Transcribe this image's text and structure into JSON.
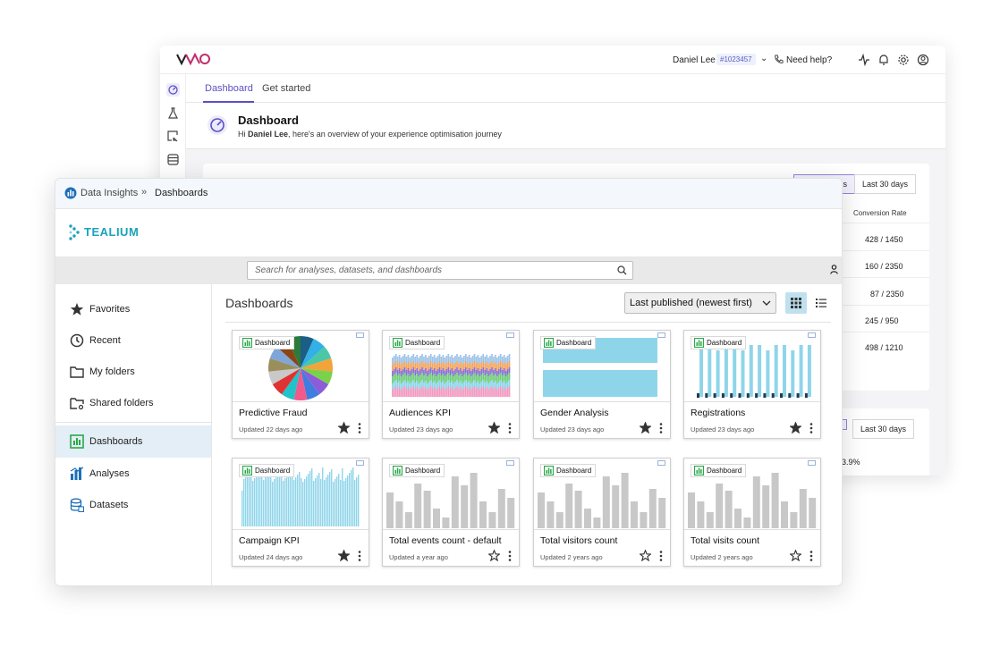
{
  "vwo": {
    "user_name": "Daniel Lee",
    "account_id": "#1023457",
    "help_label": "Need help?",
    "tabs": [
      "Dashboard",
      "Get started"
    ],
    "title": "Dashboard",
    "subtitle_hi": "Hi ",
    "subtitle_name": "Daniel Lee",
    "subtitle_rest": ", here's an overview of your experience optimisation journey",
    "range_left_partial": "s",
    "range_label": "Last 30 days",
    "conversion_header": "Conversion Rate",
    "conversions": [
      "428 / 1450",
      "160 / 2350",
      "87 / 2350",
      "245 / 950",
      "498 / 1210"
    ],
    "range_label_2": "Last 30 days",
    "percent_partial": "3.9%",
    "colors": {
      "accent": "#5b4fc4",
      "logo_pink": "#c22d6e"
    }
  },
  "tealium": {
    "breadcrumb": {
      "root": "Data Insights",
      "separator": "»",
      "current": "Dashboards"
    },
    "brand": "TEALIUM",
    "search_placeholder": "Search for analyses, datasets, and dashboards",
    "nav": [
      {
        "label": "Favorites",
        "icon": "star-icon"
      },
      {
        "label": "Recent",
        "icon": "clock-icon"
      },
      {
        "label": "My folders",
        "icon": "folder-icon"
      },
      {
        "label": "Shared folders",
        "icon": "shared-folder-icon"
      },
      {
        "label": "Dashboards",
        "icon": "dashboard-icon",
        "active": true
      },
      {
        "label": "Analyses",
        "icon": "analyses-icon"
      },
      {
        "label": "Datasets",
        "icon": "datasets-icon"
      }
    ],
    "main_title": "Dashboards",
    "sort_label": "Last published (newest first)",
    "badge_label": "Dashboard",
    "cards": [
      {
        "title": "Predictive Fraud",
        "updated": "Updated 22 days ago",
        "favorite": true,
        "thumb": "pie"
      },
      {
        "title": "Audiences KPI",
        "updated": "Updated 23 days ago",
        "favorite": true,
        "thumb": "stacked"
      },
      {
        "title": "Gender Analysis",
        "updated": "Updated 23 days ago",
        "favorite": true,
        "thumb": "hbar"
      },
      {
        "title": "Registrations",
        "updated": "Updated 23 days ago",
        "favorite": true,
        "thumb": "paired"
      },
      {
        "title": "Campaign KPI",
        "updated": "Updated 24 days ago",
        "favorite": true,
        "thumb": "dense"
      },
      {
        "title": "Total events count - default",
        "updated": "Updated a year ago",
        "favorite": false,
        "thumb": "gray"
      },
      {
        "title": "Total visitors count",
        "updated": "Updated 2 years ago",
        "favorite": false,
        "thumb": "gray"
      },
      {
        "title": "Total visits count",
        "updated": "Updated 2 years ago",
        "favorite": false,
        "thumb": "gray"
      }
    ],
    "colors": {
      "brand": "#1aa3b8",
      "bar_blue": "#8fd5ea",
      "bar_dark": "#1f3b57",
      "bar_gray": "#c8c8c8",
      "badge_green": "#2aa84a",
      "nav_active": "#e3eef6"
    }
  }
}
